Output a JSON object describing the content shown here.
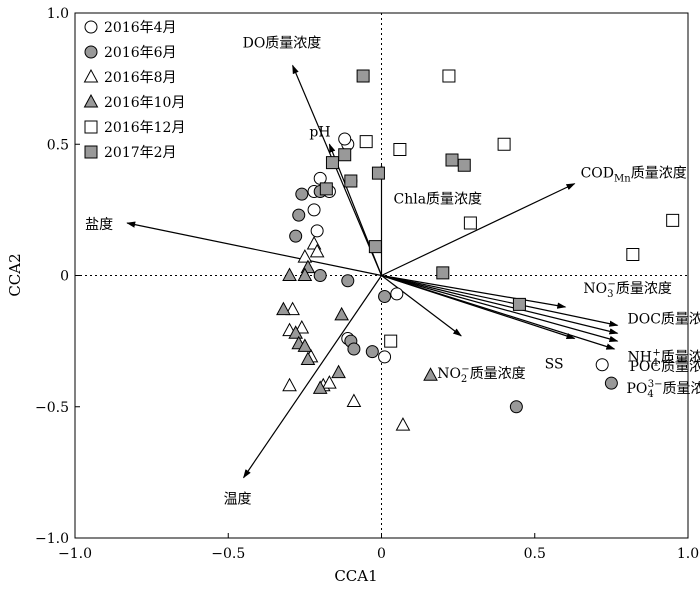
{
  "chart_data": {
    "type": "scatter",
    "xlabel": "CCA1",
    "ylabel": "CCA2",
    "xlim": [
      -1.0,
      1.0
    ],
    "ylim": [
      -1.0,
      1.0
    ],
    "xticks": [
      "−1.0",
      "−0.5",
      "0",
      "0.5",
      "1.0"
    ],
    "yticks": [
      "1.0",
      "0.5",
      "0",
      "−0.5",
      "−1.0"
    ],
    "legend_position": "top-left",
    "zero_lines": true,
    "series": [
      {
        "name": "2016年4月",
        "marker": "circle",
        "fill": "#ffffff",
        "points": [
          [
            -0.2,
            0.37
          ],
          [
            -0.22,
            0.32
          ],
          [
            -0.17,
            0.32
          ],
          [
            -0.1,
            0.36
          ],
          [
            -0.11,
            0.5
          ],
          [
            -0.12,
            0.52
          ],
          [
            -0.21,
            0.17
          ],
          [
            -0.22,
            0.25
          ],
          [
            -0.11,
            -0.24
          ],
          [
            0.01,
            -0.31
          ],
          [
            0.05,
            -0.07
          ],
          [
            0.72,
            -0.34
          ]
        ]
      },
      {
        "name": "2016年6月",
        "marker": "circle",
        "fill": "#999999",
        "points": [
          [
            -0.27,
            0.23
          ],
          [
            -0.28,
            0.15
          ],
          [
            -0.26,
            0.31
          ],
          [
            -0.2,
            0.32
          ],
          [
            -0.2,
            0.0
          ],
          [
            -0.11,
            -0.02
          ],
          [
            -0.1,
            -0.25
          ],
          [
            -0.09,
            -0.28
          ],
          [
            -0.03,
            -0.29
          ],
          [
            0.01,
            -0.08
          ],
          [
            0.44,
            -0.5
          ],
          [
            0.75,
            -0.41
          ]
        ]
      },
      {
        "name": "2016年8月",
        "marker": "triangle",
        "fill": "#ffffff",
        "points": [
          [
            -0.22,
            0.12
          ],
          [
            -0.21,
            0.09
          ],
          [
            -0.25,
            0.07
          ],
          [
            -0.29,
            -0.13
          ],
          [
            -0.3,
            -0.21
          ],
          [
            -0.26,
            -0.2
          ],
          [
            -0.3,
            -0.42
          ],
          [
            -0.23,
            -0.31
          ],
          [
            -0.19,
            -0.42
          ],
          [
            -0.17,
            -0.41
          ],
          [
            -0.09,
            -0.48
          ],
          [
            0.07,
            -0.57
          ]
        ]
      },
      {
        "name": "2016年10月",
        "marker": "triangle",
        "fill": "#999999",
        "points": [
          [
            -0.24,
            0.03
          ],
          [
            -0.25,
            0.0
          ],
          [
            -0.3,
            0.0
          ],
          [
            -0.32,
            -0.13
          ],
          [
            -0.28,
            -0.22
          ],
          [
            -0.27,
            -0.26
          ],
          [
            -0.25,
            -0.27
          ],
          [
            -0.24,
            -0.32
          ],
          [
            -0.2,
            -0.43
          ],
          [
            -0.14,
            -0.37
          ],
          [
            -0.13,
            -0.15
          ],
          [
            0.16,
            -0.38
          ]
        ]
      },
      {
        "name": "2016年12月",
        "marker": "square",
        "fill": "#ffffff",
        "points": [
          [
            0.22,
            0.76
          ],
          [
            -0.05,
            0.51
          ],
          [
            0.06,
            0.48
          ],
          [
            0.4,
            0.5
          ],
          [
            0.29,
            0.2
          ],
          [
            0.82,
            0.08
          ],
          [
            0.95,
            0.21
          ],
          [
            0.03,
            -0.25
          ]
        ]
      },
      {
        "name": "2017年2月",
        "marker": "square",
        "fill": "#999999",
        "points": [
          [
            -0.06,
            0.76
          ],
          [
            -0.12,
            0.46
          ],
          [
            -0.16,
            0.43
          ],
          [
            -0.18,
            0.33
          ],
          [
            -0.1,
            0.36
          ],
          [
            -0.01,
            0.39
          ],
          [
            0.23,
            0.44
          ],
          [
            0.27,
            0.42
          ],
          [
            -0.02,
            0.11
          ],
          [
            0.2,
            0.01
          ],
          [
            0.45,
            -0.11
          ]
        ]
      }
    ],
    "vectors": [
      {
        "label": "DO质量浓度",
        "x": -0.29,
        "y": 0.8
      },
      {
        "label": "pH",
        "x": -0.17,
        "y": 0.5
      },
      {
        "label": "Chla质量浓度",
        "x": 0.0,
        "y": 0.42
      },
      {
        "label": "COD",
        "sub": "Mn",
        "label_tail": "质量浓度",
        "x": 0.63,
        "y": 0.35
      },
      {
        "label": "盐度",
        "x": -0.83,
        "y": 0.2
      },
      {
        "label": "温度",
        "x": -0.45,
        "y": -0.77
      },
      {
        "label": "NO",
        "sub": "3",
        "sup": "−",
        "label_tail": "质量浓度",
        "x": 0.6,
        "y": -0.12
      },
      {
        "label": "DOC质量浓度",
        "x": 0.77,
        "y": -0.19
      },
      {
        "label": "NH",
        "sub": "4",
        "sup": "+",
        "label_tail": "质量浓度",
        "x": 0.77,
        "y": -0.22
      },
      {
        "label": "SS",
        "x": 0.63,
        "y": -0.24
      },
      {
        "label": "POC质量浓度",
        "x": 0.77,
        "y": -0.25
      },
      {
        "label": "PO",
        "sub": "4",
        "sup": "3−",
        "label_tail": "质量浓度",
        "x": 0.76,
        "y": -0.28
      },
      {
        "label": "NO",
        "sub": "2",
        "sup": "−",
        "label_tail": "质量浓度",
        "x": 0.26,
        "y": -0.23
      }
    ]
  }
}
